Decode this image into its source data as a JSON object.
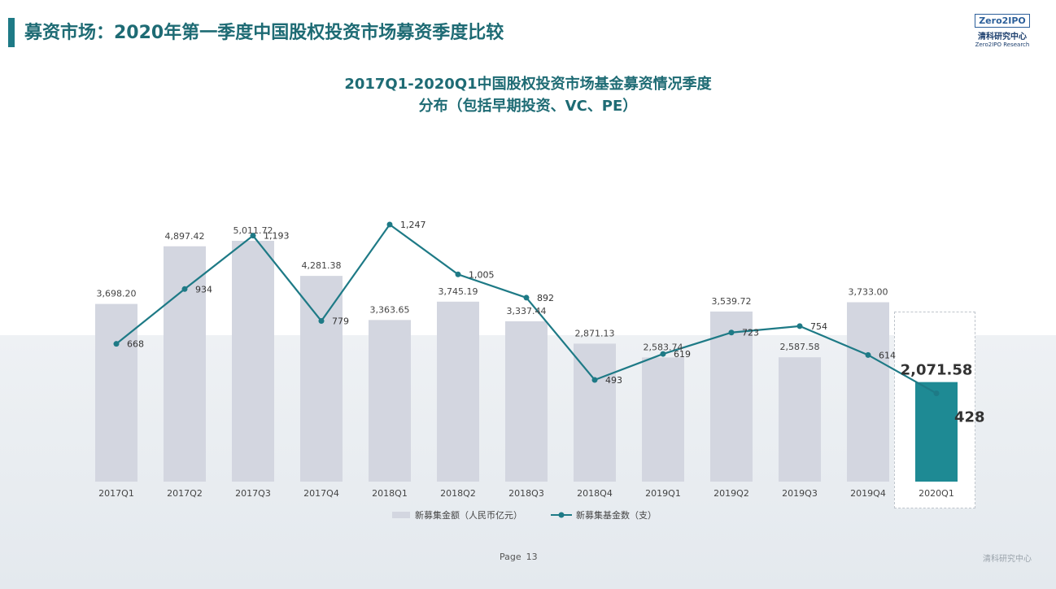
{
  "header": {
    "title": "募资市场：2020年第一季度中国股权投资市场募资季度比较",
    "logo_box": "Zero2IPO",
    "logo_cn": "清科研究中心",
    "logo_en": "Zero2IPO Research"
  },
  "colors": {
    "accent": "#1e7a86",
    "bar": "#d3d6e0",
    "highlight_bar": "#1e8a94",
    "line": "#1e7a86"
  },
  "footer": {
    "page_label": "Page",
    "page_number": "13",
    "brand": "清科研究中心"
  },
  "chart_data": {
    "type": "bar",
    "title_line1": "2017Q1-2020Q1中国股权投资市场基金募资情况季度",
    "title_line2": "分布（包括早期投资、VC、PE）",
    "categories": [
      "2017Q1",
      "2017Q2",
      "2017Q3",
      "2017Q4",
      "2018Q1",
      "2018Q2",
      "2018Q3",
      "2018Q4",
      "2019Q1",
      "2019Q2",
      "2019Q3",
      "2019Q4",
      "2020Q1"
    ],
    "series": [
      {
        "name": "新募集金额（人民币亿元）",
        "kind": "bar",
        "values": [
          3698.2,
          4897.42,
          5011.72,
          4281.38,
          3363.65,
          3745.19,
          3337.44,
          2871.13,
          2583.74,
          3539.72,
          2587.58,
          3733.0,
          2071.58
        ],
        "labels": [
          "3,698.20",
          "4,897.42",
          "5,011.72",
          "4,281.38",
          "3,363.65",
          "3,745.19",
          "3,337.44",
          "2,871.13",
          "2,583.74",
          "3,539.72",
          "2,587.58",
          "3,733.00",
          "2,071.58"
        ]
      },
      {
        "name": "新募集基金数（支）",
        "kind": "line",
        "values": [
          668,
          934,
          1193,
          779,
          1247,
          1005,
          892,
          493,
          619,
          723,
          754,
          614,
          428
        ],
        "labels": [
          "668",
          "934",
          "1,193",
          "779",
          "1,247",
          "1,005",
          "892",
          "493",
          "619",
          "723",
          "754",
          "614",
          "428"
        ]
      }
    ],
    "legend_position": "bottom",
    "grid": false
  }
}
